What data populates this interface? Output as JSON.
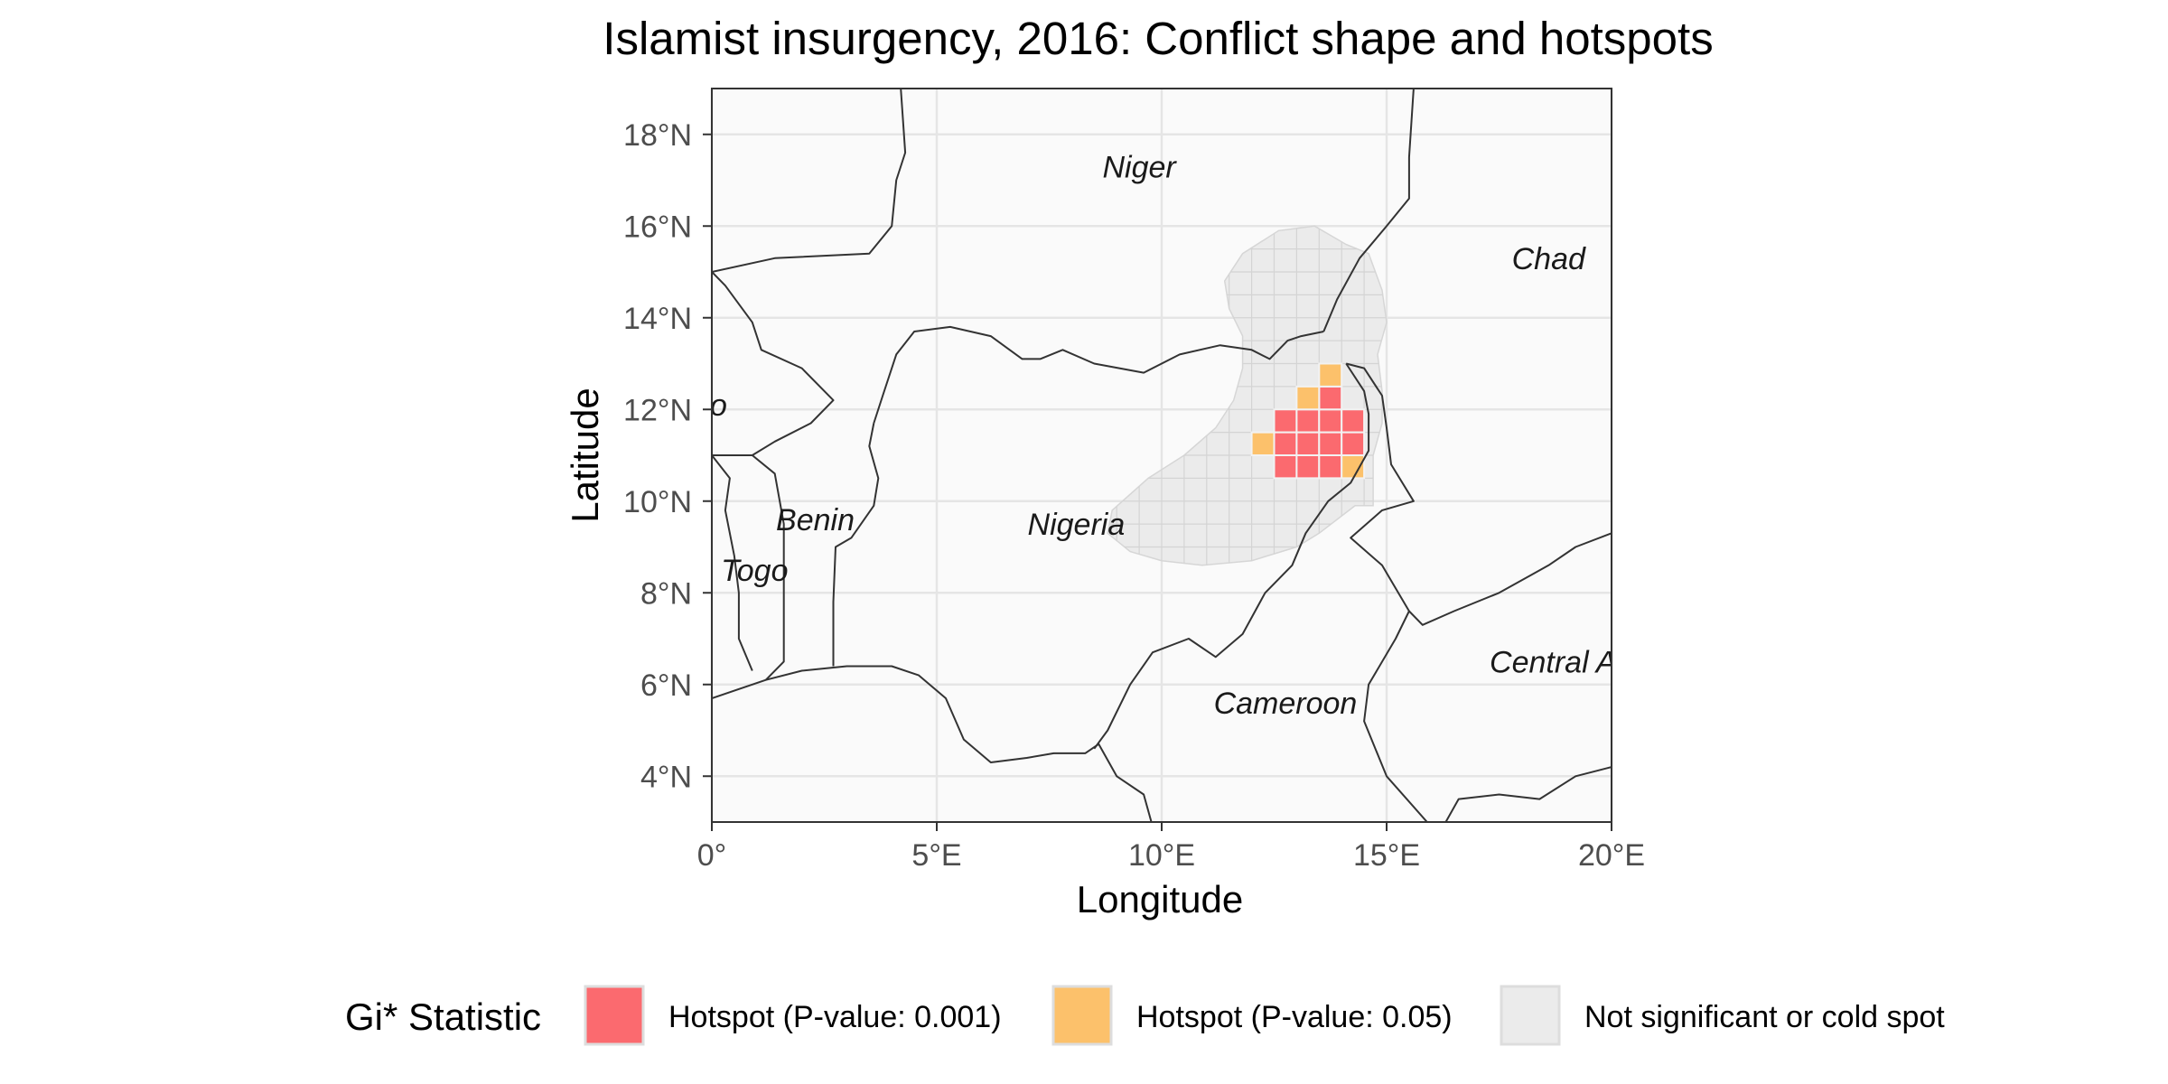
{
  "title": "Islamist insurgency, 2016: Conflict shape and hotspots",
  "x_axis": {
    "title": "Longitude",
    "ticks": [
      {
        "value": 0,
        "label": "0°"
      },
      {
        "value": 5,
        "label": "5°E"
      },
      {
        "value": 10,
        "label": "10°E"
      },
      {
        "value": 15,
        "label": "15°E"
      },
      {
        "value": 20,
        "label": "20°E"
      }
    ],
    "range": [
      0,
      20
    ]
  },
  "y_axis": {
    "title": "Latitude",
    "ticks": [
      {
        "value": 4,
        "label": "4°N"
      },
      {
        "value": 6,
        "label": "6°N"
      },
      {
        "value": 8,
        "label": "8°N"
      },
      {
        "value": 10,
        "label": "10°N"
      },
      {
        "value": 12,
        "label": "12°N"
      },
      {
        "value": 14,
        "label": "14°N"
      },
      {
        "value": 16,
        "label": "16°N"
      },
      {
        "value": 18,
        "label": "18°N"
      }
    ],
    "range": [
      3,
      19
    ]
  },
  "countries": [
    {
      "label": "Niger",
      "lon": 9.5,
      "lat": 17.3
    },
    {
      "label": "Chad",
      "lon": 18.6,
      "lat": 15.3
    },
    {
      "label": "Nigeria",
      "lon": 8.1,
      "lat": 9.5
    },
    {
      "label": "Benin",
      "lon": 2.3,
      "lat": 9.6
    },
    {
      "label": "Togo",
      "lon": 0.95,
      "lat": 8.5
    },
    {
      "label": "Cameroon",
      "lon": 12.75,
      "lat": 5.6
    },
    {
      "label": "Central A",
      "lon": 18.7,
      "lat": 6.5
    },
    {
      "label": "o",
      "lon": 0.15,
      "lat": 12.1
    }
  ],
  "legend": {
    "title": "Gi* Statistic",
    "items": [
      {
        "label": "Hotspot (P-value: 0.001)",
        "color": "#fb6a6f"
      },
      {
        "label": "Hotspot (P-value: 0.05)",
        "color": "#fcc16b"
      },
      {
        "label": "Not significant or cold spot",
        "color": "#ebebeb"
      }
    ]
  },
  "colors": {
    "panel_background": "#fafafa",
    "conflict_shape": "#ebebeb",
    "hotspot_001": "#fb6a6f",
    "hotspot_005": "#fcc16b"
  },
  "hotspot_cells": {
    "cell_size_deg": 0.5,
    "p001": [
      [
        12.75,
        11.75
      ],
      [
        13.25,
        11.75
      ],
      [
        13.75,
        11.75
      ],
      [
        14.25,
        11.75
      ],
      [
        12.75,
        11.25
      ],
      [
        13.25,
        11.25
      ],
      [
        13.75,
        11.25
      ],
      [
        14.25,
        11.25
      ],
      [
        12.75,
        10.75
      ],
      [
        13.25,
        10.75
      ],
      [
        13.75,
        10.75
      ],
      [
        13.75,
        12.25
      ]
    ],
    "p005": [
      [
        13.75,
        12.75
      ],
      [
        13.25,
        12.25
      ],
      [
        12.25,
        11.25
      ],
      [
        14.25,
        10.75
      ]
    ]
  }
}
